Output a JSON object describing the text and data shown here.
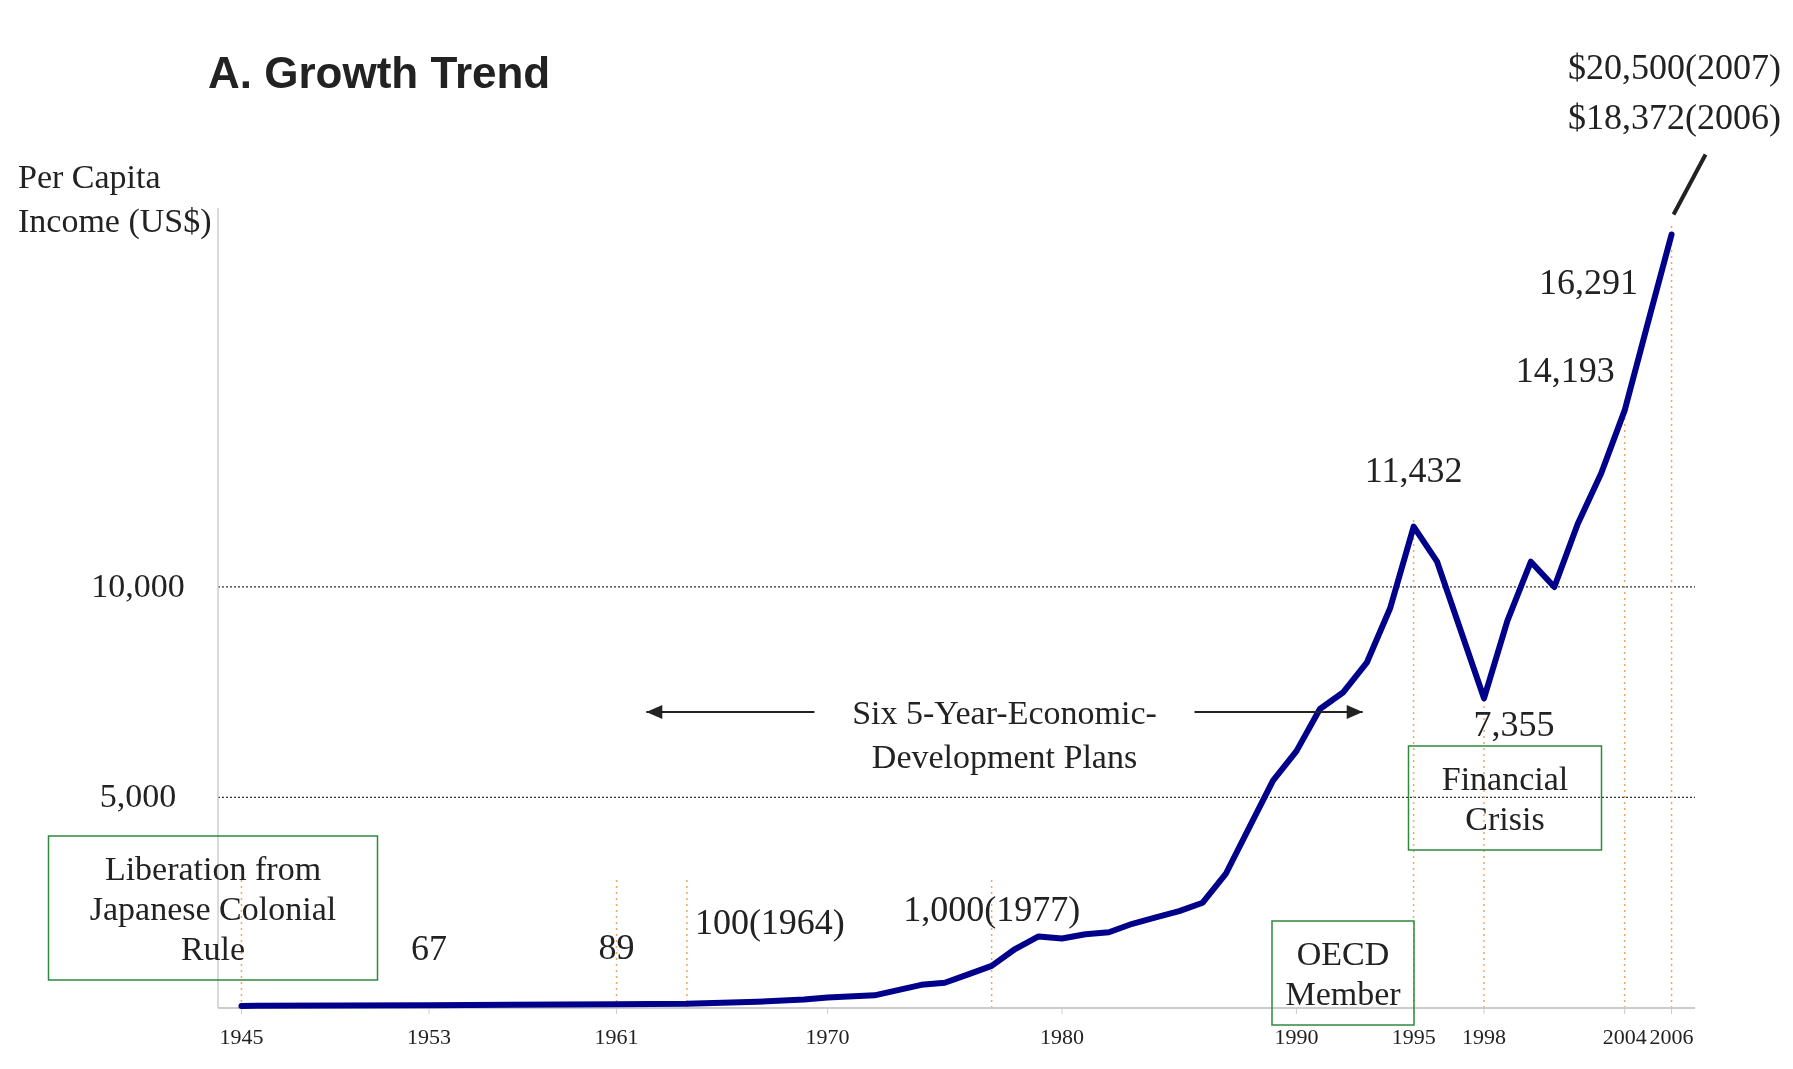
{
  "chart_data": {
    "type": "line",
    "title": "A. Growth Trend",
    "ylabel": "Per Capita Income (US$)",
    "x": [
      1945,
      1953,
      1961,
      1964,
      1967,
      1969,
      1970,
      1972,
      1974,
      1975,
      1976,
      1977,
      1978,
      1979,
      1980,
      1981,
      1982,
      1983,
      1984,
      1985,
      1986,
      1987,
      1988,
      1989,
      1990,
      1991,
      1992,
      1993,
      1994,
      1995,
      1996,
      1998,
      1999,
      2000,
      2001,
      2002,
      2003,
      2004,
      2005,
      2006
    ],
    "series": [
      {
        "color": "#00008b",
        "values": [
          50,
          67,
          89,
          100,
          150,
          200,
          250,
          300,
          550,
          600,
          800,
          1000,
          1400,
          1700,
          1650,
          1750,
          1800,
          2000,
          2150,
          2300,
          2500,
          3200,
          4300,
          5400,
          6100,
          7100,
          7500,
          8200,
          9500,
          11432,
          10600,
          7355,
          9200,
          10600,
          10000,
          11500,
          12700,
          14193,
          16291,
          18372
        ],
        "value_labels": [
          null,
          "67",
          "89",
          "100(1964)",
          null,
          null,
          null,
          null,
          null,
          null,
          null,
          "1,000(1977)",
          null,
          null,
          null,
          null,
          null,
          null,
          null,
          null,
          null,
          null,
          null,
          null,
          null,
          null,
          null,
          null,
          null,
          "11,432",
          null,
          "7,355",
          null,
          null,
          null,
          null,
          null,
          "14,193",
          "16,291",
          "$18,372(2006)"
        ]
      }
    ],
    "xlim": [
      1944,
      2007
    ],
    "ylim": [
      0,
      19000
    ],
    "xticks": [
      1945,
      1953,
      1961,
      1970,
      1980,
      1990,
      1995,
      1998,
      2004,
      2006
    ],
    "yticks": [
      {
        "value": 5000,
        "label": "5,000"
      },
      {
        "value": 10000,
        "label": "10,000"
      }
    ],
    "grid": "y",
    "line_style": "solid",
    "marker": "none",
    "ref_lines": [
      {
        "axis": "x",
        "value": 1945,
        "color": "#f4a460",
        "line_style": "dotted"
      },
      {
        "axis": "x",
        "value": 1961,
        "color": "#f4a460",
        "line_style": "dotted"
      },
      {
        "axis": "x",
        "value": 1964,
        "color": "#f4a460",
        "line_style": "dotted"
      },
      {
        "axis": "x",
        "value": 1977,
        "color": "#f4a460",
        "line_style": "dotted"
      },
      {
        "axis": "x",
        "value": 1995,
        "color": "#f4a460",
        "line_style": "dotted"
      },
      {
        "axis": "x",
        "value": 1998,
        "color": "#f4a460",
        "line_style": "dotted"
      },
      {
        "axis": "x",
        "value": 2004,
        "color": "#f4a460",
        "line_style": "dotted"
      },
      {
        "axis": "x",
        "value": 2006,
        "color": "#f4a460",
        "line_style": "dotted"
      }
    ],
    "annotations": [
      "$20,500(2007)",
      "Six 5-Year-Economic-Development Plans",
      "Liberation from Japanese Colonial Rule",
      "OECD Member",
      "Financial Crisis"
    ]
  }
}
